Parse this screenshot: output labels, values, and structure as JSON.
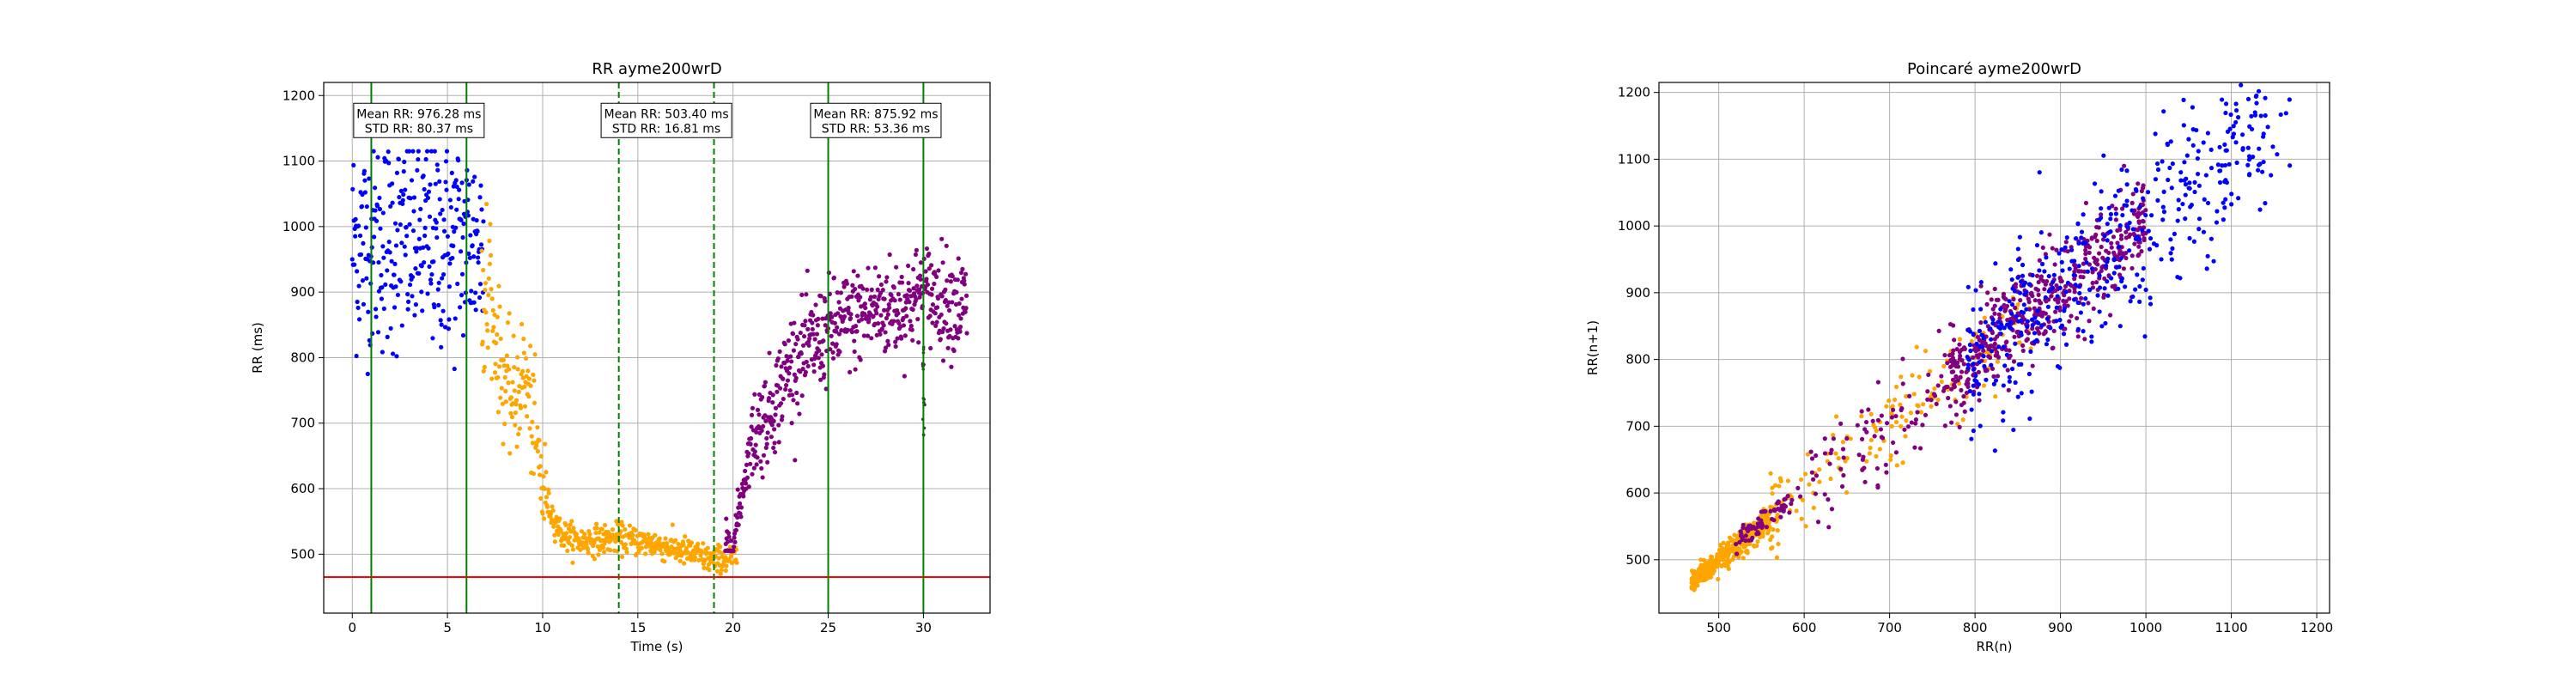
{
  "chart_data": [
    {
      "type": "scatter",
      "title": "RR ayme200wrD",
      "xlabel": "Time (s)",
      "ylabel": "RR (ms)",
      "xlim": [
        -1.5,
        33.5
      ],
      "ylim": [
        410,
        1220
      ],
      "xticks": [
        0,
        5,
        10,
        15,
        20,
        25,
        30
      ],
      "yticks": [
        500,
        600,
        700,
        800,
        900,
        1000,
        1100,
        1200
      ],
      "grid": true,
      "colors": {
        "baseline": "#0000ff",
        "exercise": "#ffa500",
        "recovery": "#800080",
        "window": "#008000",
        "threshold": "#ff0000"
      },
      "series": [
        {
          "color": "#0000ff",
          "t_range": [
            0,
            7
          ],
          "rr_mean": 976.28,
          "rr_std": 80.37,
          "rr_range": [
            775,
            1115
          ]
        },
        {
          "color": "#ffa500",
          "t_range": [
            7,
            20
          ],
          "rr_mean": 503.4,
          "rr_std": 16.81,
          "rr_range": [
            470,
            1065
          ],
          "trend": [
            [
              7,
              900
            ],
            [
              7.5,
              840
            ],
            [
              8,
              760
            ],
            [
              8.5,
              730
            ],
            [
              9,
              780
            ],
            [
              9.5,
              700
            ],
            [
              10,
              600
            ],
            [
              10.5,
              560
            ],
            [
              11,
              530
            ],
            [
              12,
              520
            ],
            [
              14,
              525
            ],
            [
              16,
              515
            ],
            [
              18,
              500
            ],
            [
              19,
              490
            ],
            [
              20,
              495
            ]
          ]
        },
        {
          "color": "#800080",
          "t_range": [
            20,
            32
          ],
          "rr_mean": 875.92,
          "rr_std": 53.36,
          "rr_range": [
            505,
            1025
          ],
          "trend": [
            [
              20,
              510
            ],
            [
              20.5,
              600
            ],
            [
              21,
              680
            ],
            [
              22,
              720
            ],
            [
              23,
              790
            ],
            [
              25,
              840
            ],
            [
              27,
              870
            ],
            [
              29,
              880
            ],
            [
              30,
              900
            ],
            [
              32,
              880
            ]
          ]
        }
      ],
      "vlines": [
        {
          "x": 1,
          "style": "solid",
          "color": "#008000"
        },
        {
          "x": 6,
          "style": "solid",
          "color": "#008000"
        },
        {
          "x": 14,
          "style": "dashed",
          "color": "#008000"
        },
        {
          "x": 19,
          "style": "dashed",
          "color": "#008000"
        },
        {
          "x": 25,
          "style": "solid",
          "color": "#008000"
        },
        {
          "x": 30,
          "style": "solid",
          "color": "#008000"
        }
      ],
      "hline": {
        "y": 465,
        "color": "#ff0000"
      },
      "annotations": [
        {
          "x": 3.5,
          "y": 1162,
          "line1": "Mean RR: 976.28 ms",
          "line2": "STD RR: 80.37 ms"
        },
        {
          "x": 16.5,
          "y": 1162,
          "line1": "Mean RR: 503.40 ms",
          "line2": "STD RR: 16.81 ms"
        },
        {
          "x": 27.5,
          "y": 1162,
          "line1": "Mean RR: 875.92 ms",
          "line2": "STD RR: 53.36 ms"
        }
      ]
    },
    {
      "type": "scatter",
      "title": "Poincaré ayme200wrD",
      "xlabel": "RR(n)",
      "ylabel": "RR(n+1)",
      "xlim": [
        430,
        1215
      ],
      "ylim": [
        420,
        1215
      ],
      "xticks": [
        500,
        600,
        700,
        800,
        900,
        1000,
        1100,
        1200
      ],
      "yticks": [
        500,
        600,
        700,
        800,
        900,
        1000,
        1100,
        1200
      ],
      "grid": true,
      "series": [
        {
          "color": "#ffa500",
          "rr_range": [
            465,
            940
          ],
          "correlation": "along identity line"
        },
        {
          "color": "#800080",
          "rr_range": [
            520,
            1030
          ],
          "correlation": "along identity line"
        },
        {
          "color": "#0000ff",
          "rr_range": [
            775,
            1175
          ],
          "correlation": "along identity line, wider spread"
        }
      ]
    }
  ]
}
